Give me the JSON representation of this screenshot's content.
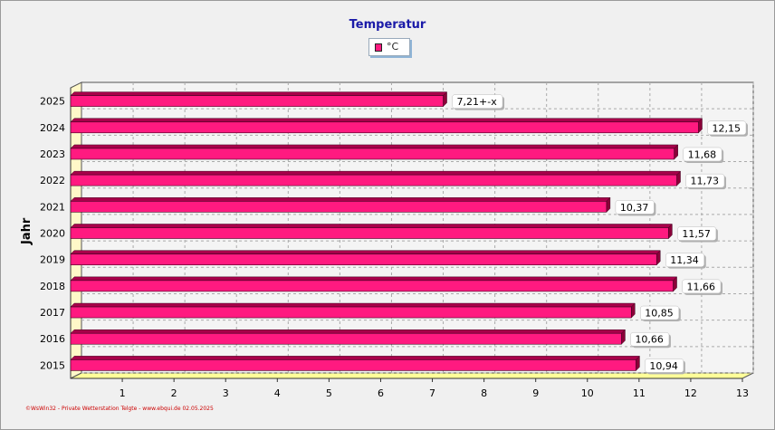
{
  "chart_data": {
    "type": "bar",
    "orientation": "horizontal",
    "title": "Temperatur",
    "ylabel": "Jahr",
    "xlabel": "",
    "xlim": [
      0,
      13
    ],
    "x_ticks": [
      "1",
      "2",
      "3",
      "4",
      "5",
      "6",
      "7",
      "8",
      "9",
      "10",
      "11",
      "12",
      "13"
    ],
    "grid": true,
    "legend_position": "top-center",
    "series": [
      {
        "name": "°C",
        "color": "#ff1a80",
        "values": [
          10.94,
          10.66,
          10.85,
          11.66,
          11.34,
          11.57,
          10.37,
          11.73,
          11.68,
          12.15,
          7.21
        ]
      }
    ],
    "categories": [
      "2015",
      "2016",
      "2017",
      "2018",
      "2019",
      "2020",
      "2021",
      "2022",
      "2023",
      "2024",
      "2025"
    ],
    "data_labels": [
      "10,94",
      "10,66",
      "10,85",
      "11,66",
      "11,34",
      "11,57",
      "10,37",
      "11,73",
      "11,68",
      "12,15",
      "7,21+-x"
    ]
  },
  "footer": "©WsWin32 - Private Wetterstation Telgte - www.ebqui.de  02.05.2025"
}
